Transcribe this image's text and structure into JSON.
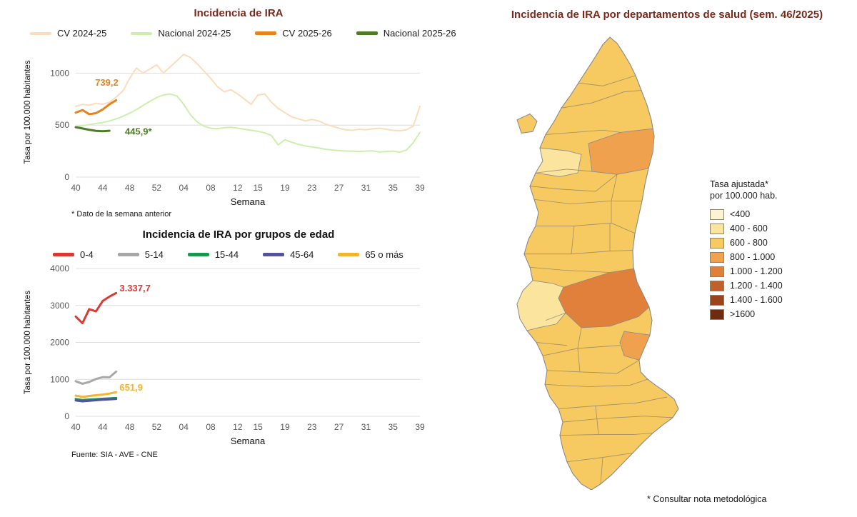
{
  "chart_data": [
    {
      "type": "line",
      "title": "Incidencia de IRA",
      "xlabel": "Semana",
      "ylabel": "Tasa por 100.000 habitantes",
      "ylim": [
        0,
        1250
      ],
      "yticks": [
        0,
        500,
        1000
      ],
      "x_count": 52,
      "x_ticks": [
        {
          "i": 0,
          "label": "40"
        },
        {
          "i": 4,
          "label": "44"
        },
        {
          "i": 8,
          "label": "48"
        },
        {
          "i": 12,
          "label": "52"
        },
        {
          "i": 16,
          "label": "04"
        },
        {
          "i": 20,
          "label": "08"
        },
        {
          "i": 24,
          "label": "12"
        },
        {
          "i": 27,
          "label": "15"
        },
        {
          "i": 31,
          "label": "19"
        },
        {
          "i": 35,
          "label": "23"
        },
        {
          "i": 39,
          "label": "27"
        },
        {
          "i": 43,
          "label": "31"
        },
        {
          "i": 47,
          "label": "35"
        },
        {
          "i": 51,
          "label": "39"
        }
      ],
      "series": [
        {
          "name": "CV 2024-25",
          "color": "#FBDCBB",
          "width": 2,
          "values": [
            680,
            700,
            690,
            710,
            700,
            720,
            770,
            830,
            950,
            1050,
            1000,
            1040,
            1080,
            1000,
            1060,
            1120,
            1180,
            1150,
            1090,
            1020,
            950,
            870,
            820,
            840,
            800,
            750,
            700,
            790,
            800,
            720,
            660,
            620,
            580,
            560,
            540,
            555,
            540,
            510,
            490,
            470,
            455,
            450,
            460,
            455,
            465,
            470,
            460,
            450,
            445,
            455,
            490,
            680
          ]
        },
        {
          "name": "Nacional 2024-25",
          "color": "#CDEFAD",
          "width": 2,
          "values": [
            480,
            495,
            505,
            515,
            525,
            540,
            560,
            585,
            615,
            650,
            690,
            730,
            765,
            790,
            800,
            780,
            700,
            600,
            530,
            490,
            470,
            465,
            475,
            480,
            470,
            460,
            450,
            440,
            425,
            400,
            310,
            360,
            335,
            315,
            300,
            290,
            280,
            268,
            260,
            255,
            250,
            250,
            246,
            250,
            252,
            242,
            246,
            250,
            240,
            260,
            330,
            430
          ]
        },
        {
          "name": "CV 2025-26",
          "color": "#E8821D",
          "width": 3,
          "values": [
            620,
            645,
            605,
            615,
            650,
            700,
            739.2
          ]
        },
        {
          "name": "Nacional 2025-26",
          "color": "#4E7B27",
          "width": 3,
          "values": [
            480,
            468,
            455,
            445,
            441,
            445.9
          ]
        }
      ],
      "annotations": [
        {
          "text": "739,2",
          "color": "#E8821D",
          "x": 4.6,
          "y": 880,
          "anchor": "middle"
        },
        {
          "text": "445,9*",
          "color": "#4E7B27",
          "x": 7.3,
          "y": 410,
          "anchor": "start"
        }
      ],
      "footnote": "* Dato de la semana anterior"
    },
    {
      "type": "line",
      "title": "Incidencia de IRA por grupos de edad",
      "xlabel": "Semana",
      "ylabel": "Tasa por 100.000 habitantes",
      "ylim": [
        0,
        4000
      ],
      "yticks": [
        0,
        1000,
        2000,
        3000,
        4000
      ],
      "x_count": 52,
      "x_ticks": [
        {
          "i": 0,
          "label": "40"
        },
        {
          "i": 4,
          "label": "44"
        },
        {
          "i": 8,
          "label": "48"
        },
        {
          "i": 12,
          "label": "52"
        },
        {
          "i": 16,
          "label": "04"
        },
        {
          "i": 20,
          "label": "08"
        },
        {
          "i": 24,
          "label": "12"
        },
        {
          "i": 27,
          "label": "15"
        },
        {
          "i": 31,
          "label": "19"
        },
        {
          "i": 35,
          "label": "23"
        },
        {
          "i": 39,
          "label": "27"
        },
        {
          "i": 43,
          "label": "31"
        },
        {
          "i": 47,
          "label": "35"
        },
        {
          "i": 51,
          "label": "39"
        }
      ],
      "series": [
        {
          "name": "0-4",
          "color": "#D93A32",
          "width": 3,
          "values": [
            2700,
            2520,
            2900,
            2840,
            3120,
            3240,
            3337.7
          ]
        },
        {
          "name": "5-14",
          "color": "#A8A8A8",
          "width": 3,
          "values": [
            950,
            880,
            930,
            1010,
            1060,
            1055,
            1210
          ]
        },
        {
          "name": "15-44",
          "color": "#1A9850",
          "width": 3,
          "values": [
            470,
            440,
            455,
            465,
            475,
            485,
            495
          ]
        },
        {
          "name": "45-64",
          "color": "#54519E",
          "width": 3,
          "values": [
            430,
            405,
            420,
            435,
            450,
            460,
            470
          ]
        },
        {
          "name": "65 o más",
          "color": "#F5B32E",
          "width": 3,
          "values": [
            560,
            525,
            550,
            570,
            590,
            615,
            651.9
          ]
        }
      ],
      "annotations": [
        {
          "text": "3.337,7",
          "color": "#D93A32",
          "x": 6.5,
          "y": 3380,
          "anchor": "start"
        },
        {
          "text": "651,9",
          "color": "#F5B32E",
          "x": 6.5,
          "y": 700,
          "anchor": "start"
        }
      ],
      "source": "Fuente: SIA - AVE - CNE"
    }
  ],
  "map": {
    "title": "Incidencia de IRA por departamentos de salud (sem. 46/2025)",
    "legend_title": [
      "Tasa ajustada*",
      "por 100.000 hab."
    ],
    "legend": [
      {
        "label": "<400",
        "color": "#FDF3D2"
      },
      {
        "label": "400 - 600",
        "color": "#FBE49E"
      },
      {
        "label": "600 - 800",
        "color": "#F6C961"
      },
      {
        "label": "800 - 1.000",
        "color": "#F0A14E"
      },
      {
        "label": "1.000 - 1.200",
        "color": "#E0803B"
      },
      {
        "label": "1.200 - 1.400",
        "color": "#C2602C"
      },
      {
        "label": "1.400 - 1.600",
        "color": "#9A441E"
      },
      {
        "label": ">1600",
        "color": "#6E2B10"
      }
    ],
    "footnote": "* Consultar nota metodológica"
  }
}
